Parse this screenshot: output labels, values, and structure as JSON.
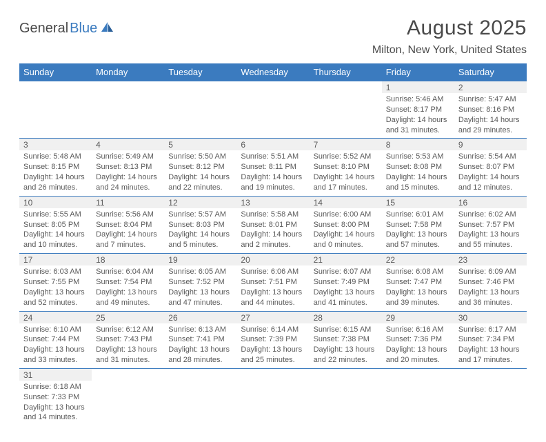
{
  "logo": {
    "part1": "General",
    "part2": "Blue"
  },
  "title": "August 2025",
  "location": "Milton, New York, United States",
  "colors": {
    "header_bg": "#3b7bbf",
    "header_text": "#ffffff",
    "daynum_bg": "#f0f0f0",
    "text": "#5a5a5a",
    "logo_accent": "#3b7bbf",
    "border": "#3b7bbf"
  },
  "dayHeaders": [
    "Sunday",
    "Monday",
    "Tuesday",
    "Wednesday",
    "Thursday",
    "Friday",
    "Saturday"
  ],
  "weeks": [
    [
      null,
      null,
      null,
      null,
      null,
      {
        "n": "1",
        "sr": "Sunrise: 5:46 AM",
        "ss": "Sunset: 8:17 PM",
        "dl": "Daylight: 14 hours and 31 minutes."
      },
      {
        "n": "2",
        "sr": "Sunrise: 5:47 AM",
        "ss": "Sunset: 8:16 PM",
        "dl": "Daylight: 14 hours and 29 minutes."
      }
    ],
    [
      {
        "n": "3",
        "sr": "Sunrise: 5:48 AM",
        "ss": "Sunset: 8:15 PM",
        "dl": "Daylight: 14 hours and 26 minutes."
      },
      {
        "n": "4",
        "sr": "Sunrise: 5:49 AM",
        "ss": "Sunset: 8:13 PM",
        "dl": "Daylight: 14 hours and 24 minutes."
      },
      {
        "n": "5",
        "sr": "Sunrise: 5:50 AM",
        "ss": "Sunset: 8:12 PM",
        "dl": "Daylight: 14 hours and 22 minutes."
      },
      {
        "n": "6",
        "sr": "Sunrise: 5:51 AM",
        "ss": "Sunset: 8:11 PM",
        "dl": "Daylight: 14 hours and 19 minutes."
      },
      {
        "n": "7",
        "sr": "Sunrise: 5:52 AM",
        "ss": "Sunset: 8:10 PM",
        "dl": "Daylight: 14 hours and 17 minutes."
      },
      {
        "n": "8",
        "sr": "Sunrise: 5:53 AM",
        "ss": "Sunset: 8:08 PM",
        "dl": "Daylight: 14 hours and 15 minutes."
      },
      {
        "n": "9",
        "sr": "Sunrise: 5:54 AM",
        "ss": "Sunset: 8:07 PM",
        "dl": "Daylight: 14 hours and 12 minutes."
      }
    ],
    [
      {
        "n": "10",
        "sr": "Sunrise: 5:55 AM",
        "ss": "Sunset: 8:05 PM",
        "dl": "Daylight: 14 hours and 10 minutes."
      },
      {
        "n": "11",
        "sr": "Sunrise: 5:56 AM",
        "ss": "Sunset: 8:04 PM",
        "dl": "Daylight: 14 hours and 7 minutes."
      },
      {
        "n": "12",
        "sr": "Sunrise: 5:57 AM",
        "ss": "Sunset: 8:03 PM",
        "dl": "Daylight: 14 hours and 5 minutes."
      },
      {
        "n": "13",
        "sr": "Sunrise: 5:58 AM",
        "ss": "Sunset: 8:01 PM",
        "dl": "Daylight: 14 hours and 2 minutes."
      },
      {
        "n": "14",
        "sr": "Sunrise: 6:00 AM",
        "ss": "Sunset: 8:00 PM",
        "dl": "Daylight: 14 hours and 0 minutes."
      },
      {
        "n": "15",
        "sr": "Sunrise: 6:01 AM",
        "ss": "Sunset: 7:58 PM",
        "dl": "Daylight: 13 hours and 57 minutes."
      },
      {
        "n": "16",
        "sr": "Sunrise: 6:02 AM",
        "ss": "Sunset: 7:57 PM",
        "dl": "Daylight: 13 hours and 55 minutes."
      }
    ],
    [
      {
        "n": "17",
        "sr": "Sunrise: 6:03 AM",
        "ss": "Sunset: 7:55 PM",
        "dl": "Daylight: 13 hours and 52 minutes."
      },
      {
        "n": "18",
        "sr": "Sunrise: 6:04 AM",
        "ss": "Sunset: 7:54 PM",
        "dl": "Daylight: 13 hours and 49 minutes."
      },
      {
        "n": "19",
        "sr": "Sunrise: 6:05 AM",
        "ss": "Sunset: 7:52 PM",
        "dl": "Daylight: 13 hours and 47 minutes."
      },
      {
        "n": "20",
        "sr": "Sunrise: 6:06 AM",
        "ss": "Sunset: 7:51 PM",
        "dl": "Daylight: 13 hours and 44 minutes."
      },
      {
        "n": "21",
        "sr": "Sunrise: 6:07 AM",
        "ss": "Sunset: 7:49 PM",
        "dl": "Daylight: 13 hours and 41 minutes."
      },
      {
        "n": "22",
        "sr": "Sunrise: 6:08 AM",
        "ss": "Sunset: 7:47 PM",
        "dl": "Daylight: 13 hours and 39 minutes."
      },
      {
        "n": "23",
        "sr": "Sunrise: 6:09 AM",
        "ss": "Sunset: 7:46 PM",
        "dl": "Daylight: 13 hours and 36 minutes."
      }
    ],
    [
      {
        "n": "24",
        "sr": "Sunrise: 6:10 AM",
        "ss": "Sunset: 7:44 PM",
        "dl": "Daylight: 13 hours and 33 minutes."
      },
      {
        "n": "25",
        "sr": "Sunrise: 6:12 AM",
        "ss": "Sunset: 7:43 PM",
        "dl": "Daylight: 13 hours and 31 minutes."
      },
      {
        "n": "26",
        "sr": "Sunrise: 6:13 AM",
        "ss": "Sunset: 7:41 PM",
        "dl": "Daylight: 13 hours and 28 minutes."
      },
      {
        "n": "27",
        "sr": "Sunrise: 6:14 AM",
        "ss": "Sunset: 7:39 PM",
        "dl": "Daylight: 13 hours and 25 minutes."
      },
      {
        "n": "28",
        "sr": "Sunrise: 6:15 AM",
        "ss": "Sunset: 7:38 PM",
        "dl": "Daylight: 13 hours and 22 minutes."
      },
      {
        "n": "29",
        "sr": "Sunrise: 6:16 AM",
        "ss": "Sunset: 7:36 PM",
        "dl": "Daylight: 13 hours and 20 minutes."
      },
      {
        "n": "30",
        "sr": "Sunrise: 6:17 AM",
        "ss": "Sunset: 7:34 PM",
        "dl": "Daylight: 13 hours and 17 minutes."
      }
    ],
    [
      {
        "n": "31",
        "sr": "Sunrise: 6:18 AM",
        "ss": "Sunset: 7:33 PM",
        "dl": "Daylight: 13 hours and 14 minutes."
      },
      null,
      null,
      null,
      null,
      null,
      null
    ]
  ]
}
